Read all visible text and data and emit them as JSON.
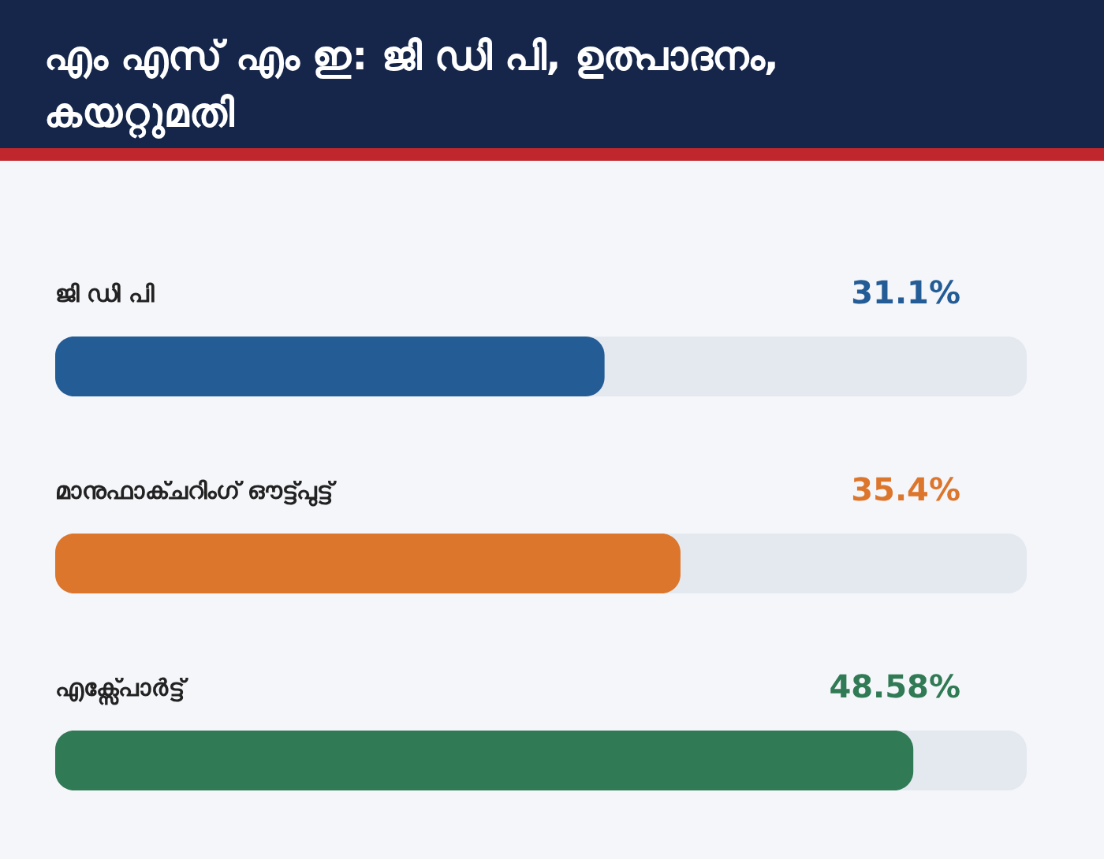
{
  "chart_data": {
    "type": "bar",
    "orientation": "horizontal",
    "title": "എം എസ് എം ഇ: ജി ഡി പി, ഉത്പാദനം, കയറ്റുമതി",
    "categories": [
      "ജി ഡി പി",
      "മാനുഫാക്ചറിംഗ് ഔട്ട്പുട്ട്",
      "എക്സ്പോർട്ട്"
    ],
    "values": [
      31.1,
      35.4,
      48.58
    ],
    "colors": [
      "#245c96",
      "#dd762d",
      "#307a55"
    ],
    "value_labels": [
      "31.1%",
      "35.4%",
      "48.58%"
    ],
    "xlim": [
      0,
      55
    ],
    "tick_labels": false
  }
}
